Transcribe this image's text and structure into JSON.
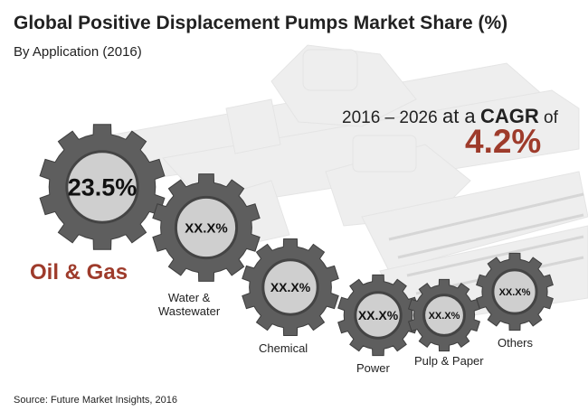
{
  "header": {
    "title": "Global Positive Displacement Pumps Market Share (%)",
    "subtitle": "By Application (2016)"
  },
  "cagr": {
    "period": "2016 – 2026",
    "at_a": "at a",
    "cagr_word": "CAGR",
    "of": "of",
    "value": "4.2%",
    "color": "#9e3b2b"
  },
  "chart_data": {
    "type": "bar",
    "title": "Global Positive Displacement Pumps Market Share (%)",
    "subtitle": "By Application (2016)",
    "categories": [
      "Oil & Gas",
      "Water & Wastewater",
      "Chemical",
      "Power",
      "Pulp & Paper",
      "Others"
    ],
    "value_labels": [
      "23.5%",
      "XX.X%",
      "XX.X%",
      "XX.X%",
      "XX.X%",
      "XX.X%"
    ],
    "values": [
      23.5,
      null,
      null,
      null,
      null,
      null
    ],
    "category_lines": [
      [
        "Oil & Gas"
      ],
      [
        "Water &",
        "Wastewater"
      ],
      [
        "Chemical"
      ],
      [
        "Power"
      ],
      [
        "Pulp & Paper"
      ],
      [
        "Others"
      ]
    ]
  },
  "source": "Source: Future Market Insights, 2016",
  "colors": {
    "gear": "#5e5e5e",
    "gear_inner": "#cfcfcf",
    "accent": "#9e3b2b"
  }
}
